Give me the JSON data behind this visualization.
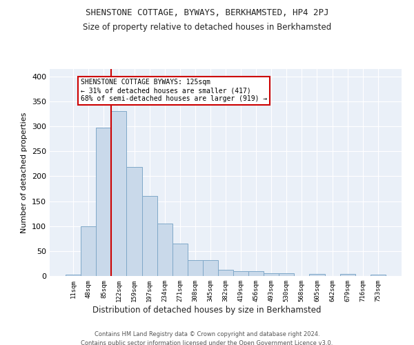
{
  "title": "SHENSTONE COTTAGE, BYWAYS, BERKHAMSTED, HP4 2PJ",
  "subtitle": "Size of property relative to detached houses in Berkhamsted",
  "xlabel": "Distribution of detached houses by size in Berkhamsted",
  "ylabel": "Number of detached properties",
  "bin_labels": [
    "11sqm",
    "48sqm",
    "85sqm",
    "122sqm",
    "159sqm",
    "197sqm",
    "234sqm",
    "271sqm",
    "308sqm",
    "345sqm",
    "382sqm",
    "419sqm",
    "456sqm",
    "493sqm",
    "530sqm",
    "568sqm",
    "605sqm",
    "642sqm",
    "679sqm",
    "716sqm",
    "753sqm"
  ],
  "bar_heights": [
    3,
    99,
    297,
    330,
    218,
    160,
    105,
    65,
    32,
    32,
    13,
    10,
    10,
    5,
    5,
    0,
    4,
    0,
    4,
    0,
    3
  ],
  "bar_color": "#c9d9ea",
  "bar_edge_color": "#7fa8c8",
  "vline_x_index": 3,
  "vline_color": "#cc0000",
  "annotation_text": "SHENSTONE COTTAGE BYWAYS: 125sqm\n← 31% of detached houses are smaller (417)\n68% of semi-detached houses are larger (919) →",
  "annotation_box_color": "#ffffff",
  "annotation_box_edge": "#cc0000",
  "footer_line1": "Contains HM Land Registry data © Crown copyright and database right 2024.",
  "footer_line2": "Contains public sector information licensed under the Open Government Licence v3.0.",
  "plot_background": "#eaf0f8",
  "ylim": [
    0,
    415
  ],
  "yticks": [
    0,
    50,
    100,
    150,
    200,
    250,
    300,
    350,
    400
  ]
}
